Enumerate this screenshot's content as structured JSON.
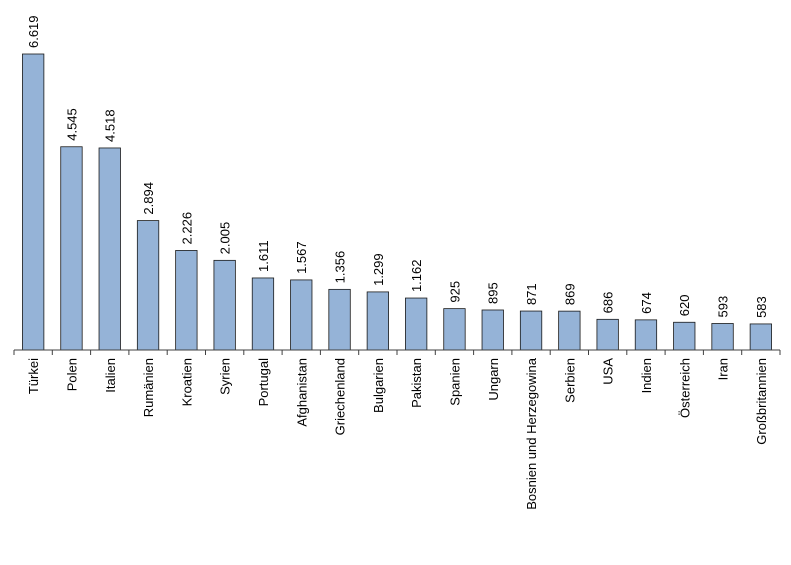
{
  "colors": {
    "bar_fill": "#95b3d7",
    "bar_stroke": "#1a1a1a",
    "axis": "#404040",
    "text": "#000000",
    "background": "#ffffff"
  },
  "chart_data": {
    "type": "bar",
    "title": "",
    "xlabel": "",
    "ylabel": "",
    "grid": false,
    "legend": "none",
    "ylim": [
      0,
      6619
    ],
    "categories": [
      "Türkei",
      "Polen",
      "Italien",
      "Rumänien",
      "Kroatien",
      "Syrien",
      "Portugal",
      "Afghanistan",
      "Griechenland",
      "Bulgarien",
      "Pakistan",
      "Spanien",
      "Ungarn",
      "Bosnien und Herzegowina",
      "Serbien",
      "USA",
      "Indien",
      "Österreich",
      "Iran",
      "Großbritannien"
    ],
    "values": [
      6619,
      4545,
      4518,
      2894,
      2226,
      2005,
      1611,
      1567,
      1356,
      1299,
      1162,
      925,
      895,
      871,
      869,
      686,
      674,
      620,
      593,
      583
    ],
    "value_labels": [
      "6.619",
      "4.545",
      "4.518",
      "2.894",
      "2.226",
      "2.005",
      "1.611",
      "1.567",
      "1.356",
      "1.299",
      "1.162",
      "925",
      "895",
      "871",
      "869",
      "686",
      "674",
      "620",
      "593",
      "583"
    ]
  }
}
